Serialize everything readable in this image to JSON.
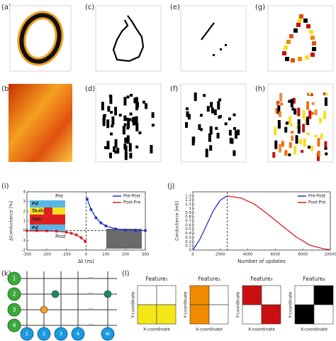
{
  "panel_labels": [
    "(a)",
    "(b)",
    "(c)",
    "(d)",
    "(e)",
    "(f)",
    "(g)",
    "(h)",
    "(i)",
    "(j)",
    "(k)",
    "(l)"
  ],
  "chart_data": [
    {
      "type": "line",
      "xlabel": "Δt (ns)",
      "ylabel": "ΔConductance [%]",
      "xlim": [
        -300,
        300
      ],
      "xticks": [
        -300,
        -200,
        -100,
        0,
        100,
        200,
        300
      ],
      "ylim": [
        -2,
        4
      ],
      "yticks": [
        -2,
        -1,
        0,
        1,
        2,
        3,
        4
      ],
      "vline": 0,
      "hline": 0,
      "markers": true,
      "legend": "upper right",
      "annotations": [
        "Pd",
        "Ta₂O₅",
        "TaOₓ",
        "Pd",
        "Pre",
        "Post"
      ],
      "series": [
        {
          "name": "Pre-Post",
          "color": "#1f35c8",
          "x": [
            5,
            25,
            50,
            75,
            100,
            150,
            200,
            250,
            300
          ],
          "values": [
            3.26,
            2.18,
            1.32,
            0.8,
            0.49,
            0.18,
            0.07,
            0.02,
            0.01
          ]
        },
        {
          "name": "Post-Pre",
          "color": "#d81e1e",
          "x": [
            -300,
            -250,
            -200,
            -150,
            -100,
            -75,
            -50,
            -25,
            -5
          ],
          "values": [
            0,
            -0.01,
            -0.02,
            -0.06,
            -0.16,
            -0.27,
            -0.44,
            -0.73,
            -1.09
          ]
        }
      ]
    },
    {
      "type": "line",
      "xlabel": "Number of updates",
      "ylabel": "Conductance [mS]",
      "xlim": [
        0,
        10000
      ],
      "xticks": [
        0,
        2000,
        4000,
        6000,
        8000,
        10000
      ],
      "ylim": [
        0,
        1.4
      ],
      "yticks": [
        0,
        0.1,
        0.2,
        0.3,
        0.4,
        0.5,
        0.6,
        0.7,
        0.8,
        0.9,
        1,
        1.1,
        1.2,
        1.3
      ],
      "vline": 2500,
      "markers": false,
      "legend": "upper right",
      "series": [
        {
          "name": "Pre-Post",
          "color": "#1f35c8",
          "x": [
            0,
            500,
            1000,
            1500,
            2000,
            2500
          ],
          "values": [
            0,
            0.25,
            0.6,
            0.95,
            1.2,
            1.3
          ]
        },
        {
          "name": "Post-Pre",
          "color": "#d81e1e",
          "x": [
            2500,
            3500,
            4500,
            5500,
            6500,
            7500,
            8500,
            9500,
            10000
          ],
          "values": [
            1.3,
            1.25,
            1.1,
            0.85,
            0.58,
            0.32,
            0.12,
            0.03,
            0.01
          ]
        }
      ]
    }
  ],
  "crossbar": {
    "rows": [
      "1",
      "2",
      "3",
      "4"
    ],
    "columns": [
      "1",
      "2",
      "3",
      "4",
      "4r"
    ],
    "ellipsis": "..."
  },
  "features": {
    "titles": [
      "Feature₁",
      "Feature₂",
      "Feature₃",
      "Feature₄"
    ],
    "ylabel": "Y-coordinate",
    "xlabel": "X-coordinate"
  }
}
